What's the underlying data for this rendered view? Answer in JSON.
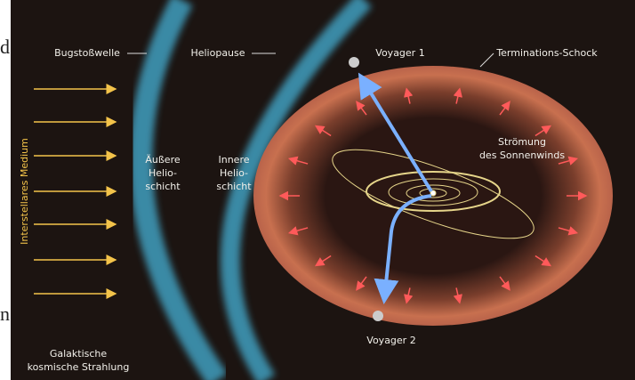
{
  "margin_fragments": [
    "d",
    "n"
  ],
  "labels": {
    "bow_shock": "Bugstoßwelle",
    "heliopause": "Heliopause",
    "voyager_1": "Voyager 1",
    "termination_shock": "Terminations-Schock",
    "interstellar_medium": "Interstellares Medium",
    "outer_heliosheath": [
      "Äußere",
      "Helio-",
      "schicht"
    ],
    "inner_heliosheath": [
      "Innere",
      "Helio-",
      "schicht"
    ],
    "solar_wind": [
      "Strömung",
      "des Sonnenwinds"
    ],
    "voyager_2": "Voyager 2",
    "cosmic_rays": [
      "Galaktische",
      "kosmische Strahlung"
    ]
  }
}
